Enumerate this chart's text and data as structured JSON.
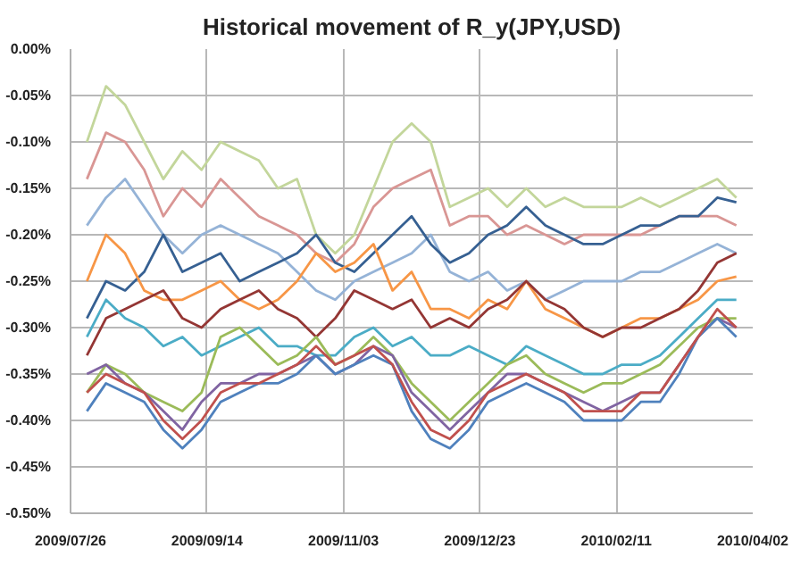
{
  "chart_data": {
    "type": "line",
    "title": "Historical movement of R_y(JPY,USD)",
    "x": [
      "2009-08-01",
      "2009-08-08",
      "2009-08-15",
      "2009-08-22",
      "2009-08-29",
      "2009-09-05",
      "2009-09-12",
      "2009-09-19",
      "2009-09-26",
      "2009-10-03",
      "2009-10-10",
      "2009-10-17",
      "2009-10-24",
      "2009-10-31",
      "2009-11-07",
      "2009-11-14",
      "2009-11-21",
      "2009-11-28",
      "2009-12-05",
      "2009-12-12",
      "2009-12-19",
      "2009-12-26",
      "2010-01-02",
      "2010-01-09",
      "2010-01-16",
      "2010-01-23",
      "2010-01-30",
      "2010-02-06",
      "2010-02-13",
      "2010-02-20",
      "2010-02-27",
      "2010-03-06",
      "2010-03-13",
      "2010-03-20",
      "2010-03-27"
    ],
    "xlim": [
      "2009-07-26",
      "2010-04-02"
    ],
    "xticks": [
      {
        "value": "2009-07-26",
        "label": "2009/07/26"
      },
      {
        "value": "2009-09-14",
        "label": "2009/09/14"
      },
      {
        "value": "2009-11-03",
        "label": "2009/11/03"
      },
      {
        "value": "2009-12-23",
        "label": "2009/12/23"
      },
      {
        "value": "2010-02-11",
        "label": "2010/02/11"
      },
      {
        "value": "2010-04-02",
        "label": "2010/04/02"
      }
    ],
    "ylim": [
      -0.5,
      0
    ],
    "yticks": [
      {
        "value": 0,
        "label": "0.00%"
      },
      {
        "value": -0.05,
        "label": "-0.05%"
      },
      {
        "value": -0.1,
        "label": "-0.10%"
      },
      {
        "value": -0.15,
        "label": "-0.15%"
      },
      {
        "value": -0.2,
        "label": "-0.20%"
      },
      {
        "value": -0.25,
        "label": "-0.25%"
      },
      {
        "value": -0.3,
        "label": "-0.30%"
      },
      {
        "value": -0.35,
        "label": "-0.35%"
      },
      {
        "value": -0.4,
        "label": "-0.40%"
      },
      {
        "value": -0.45,
        "label": "-0.45%"
      },
      {
        "value": -0.5,
        "label": "-0.50%"
      }
    ],
    "grid": true,
    "marker": "none",
    "line_style": "solid",
    "series": [
      {
        "color": "#c3d69b",
        "values": [
          -0.1,
          -0.04,
          -0.06,
          -0.1,
          -0.14,
          -0.11,
          -0.13,
          -0.1,
          -0.11,
          -0.12,
          -0.15,
          -0.14,
          -0.2,
          -0.22,
          -0.2,
          -0.15,
          -0.1,
          -0.08,
          -0.1,
          -0.17,
          -0.16,
          -0.15,
          -0.17,
          -0.15,
          -0.17,
          -0.16,
          -0.17,
          -0.17,
          -0.17,
          -0.16,
          -0.17,
          -0.16,
          -0.15,
          -0.14,
          -0.16
        ]
      },
      {
        "color": "#d99694",
        "values": [
          -0.14,
          -0.09,
          -0.1,
          -0.13,
          -0.18,
          -0.15,
          -0.17,
          -0.14,
          -0.16,
          -0.18,
          -0.19,
          -0.2,
          -0.22,
          -0.23,
          -0.21,
          -0.17,
          -0.15,
          -0.14,
          -0.13,
          -0.19,
          -0.18,
          -0.18,
          -0.2,
          -0.19,
          -0.2,
          -0.21,
          -0.2,
          -0.2,
          -0.2,
          -0.2,
          -0.19,
          -0.18,
          -0.18,
          -0.18,
          -0.19
        ]
      },
      {
        "color": "#95b3d7",
        "values": [
          -0.19,
          -0.16,
          -0.14,
          -0.17,
          -0.2,
          -0.22,
          -0.2,
          -0.19,
          -0.2,
          -0.21,
          -0.22,
          -0.24,
          -0.26,
          -0.27,
          -0.25,
          -0.24,
          -0.23,
          -0.22,
          -0.2,
          -0.24,
          -0.25,
          -0.24,
          -0.26,
          -0.25,
          -0.27,
          -0.26,
          -0.25,
          -0.25,
          -0.25,
          -0.24,
          -0.24,
          -0.23,
          -0.22,
          -0.21,
          -0.22
        ]
      },
      {
        "color": "#366092",
        "values": [
          -0.29,
          -0.25,
          -0.26,
          -0.24,
          -0.2,
          -0.24,
          -0.23,
          -0.22,
          -0.25,
          -0.24,
          -0.23,
          -0.22,
          -0.2,
          -0.23,
          -0.24,
          -0.22,
          -0.2,
          -0.18,
          -0.21,
          -0.23,
          -0.22,
          -0.2,
          -0.19,
          -0.17,
          -0.19,
          -0.2,
          -0.21,
          -0.21,
          -0.2,
          -0.19,
          -0.19,
          -0.18,
          -0.18,
          -0.16,
          -0.165
        ]
      },
      {
        "color": "#f79646",
        "values": [
          -0.25,
          -0.2,
          -0.22,
          -0.26,
          -0.27,
          -0.27,
          -0.26,
          -0.25,
          -0.27,
          -0.28,
          -0.27,
          -0.25,
          -0.22,
          -0.24,
          -0.23,
          -0.21,
          -0.26,
          -0.24,
          -0.28,
          -0.28,
          -0.29,
          -0.27,
          -0.28,
          -0.25,
          -0.28,
          -0.29,
          -0.3,
          -0.31,
          -0.3,
          -0.29,
          -0.29,
          -0.28,
          -0.27,
          -0.25,
          -0.245
        ]
      },
      {
        "color": "#943634",
        "values": [
          -0.33,
          -0.29,
          -0.28,
          -0.27,
          -0.26,
          -0.29,
          -0.3,
          -0.28,
          -0.27,
          -0.26,
          -0.28,
          -0.29,
          -0.31,
          -0.29,
          -0.26,
          -0.27,
          -0.28,
          -0.27,
          -0.3,
          -0.29,
          -0.3,
          -0.28,
          -0.27,
          -0.25,
          -0.27,
          -0.28,
          -0.3,
          -0.31,
          -0.3,
          -0.3,
          -0.29,
          -0.28,
          -0.26,
          -0.23,
          -0.22
        ]
      },
      {
        "color": "#4bacc6",
        "values": [
          -0.31,
          -0.27,
          -0.29,
          -0.3,
          -0.32,
          -0.31,
          -0.33,
          -0.32,
          -0.31,
          -0.3,
          -0.32,
          -0.32,
          -0.33,
          -0.33,
          -0.31,
          -0.3,
          -0.32,
          -0.31,
          -0.33,
          -0.33,
          -0.32,
          -0.33,
          -0.34,
          -0.32,
          -0.33,
          -0.34,
          -0.35,
          -0.35,
          -0.34,
          -0.34,
          -0.33,
          -0.31,
          -0.29,
          -0.27,
          -0.27
        ]
      },
      {
        "color": "#9bbb59",
        "values": [
          -0.37,
          -0.34,
          -0.35,
          -0.37,
          -0.38,
          -0.39,
          -0.37,
          -0.31,
          -0.3,
          -0.32,
          -0.34,
          -0.33,
          -0.31,
          -0.34,
          -0.33,
          -0.31,
          -0.33,
          -0.36,
          -0.38,
          -0.4,
          -0.38,
          -0.36,
          -0.34,
          -0.33,
          -0.35,
          -0.36,
          -0.37,
          -0.36,
          -0.36,
          -0.35,
          -0.34,
          -0.32,
          -0.3,
          -0.29,
          -0.29
        ]
      },
      {
        "color": "#8064a2",
        "values": [
          -0.35,
          -0.34,
          -0.36,
          -0.37,
          -0.39,
          -0.41,
          -0.38,
          -0.36,
          -0.36,
          -0.35,
          -0.35,
          -0.34,
          -0.33,
          -0.35,
          -0.34,
          -0.32,
          -0.33,
          -0.37,
          -0.39,
          -0.41,
          -0.39,
          -0.37,
          -0.35,
          -0.35,
          -0.36,
          -0.37,
          -0.38,
          -0.39,
          -0.38,
          -0.37,
          -0.37,
          -0.34,
          -0.31,
          -0.29,
          -0.3
        ]
      },
      {
        "color": "#4f81bd",
        "values": [
          -0.39,
          -0.36,
          -0.37,
          -0.38,
          -0.41,
          -0.43,
          -0.41,
          -0.38,
          -0.37,
          -0.36,
          -0.36,
          -0.35,
          -0.33,
          -0.35,
          -0.34,
          -0.33,
          -0.34,
          -0.39,
          -0.42,
          -0.43,
          -0.41,
          -0.38,
          -0.37,
          -0.36,
          -0.37,
          -0.38,
          -0.4,
          -0.4,
          -0.4,
          -0.38,
          -0.38,
          -0.35,
          -0.31,
          -0.29,
          -0.31
        ]
      },
      {
        "color": "#c0504d",
        "values": [
          -0.37,
          -0.35,
          -0.36,
          -0.37,
          -0.4,
          -0.42,
          -0.4,
          -0.37,
          -0.36,
          -0.36,
          -0.35,
          -0.34,
          -0.32,
          -0.34,
          -0.33,
          -0.32,
          -0.34,
          -0.38,
          -0.41,
          -0.42,
          -0.4,
          -0.37,
          -0.36,
          -0.35,
          -0.36,
          -0.37,
          -0.39,
          -0.39,
          -0.39,
          -0.37,
          -0.37,
          -0.34,
          -0.31,
          -0.28,
          -0.3
        ]
      }
    ]
  }
}
